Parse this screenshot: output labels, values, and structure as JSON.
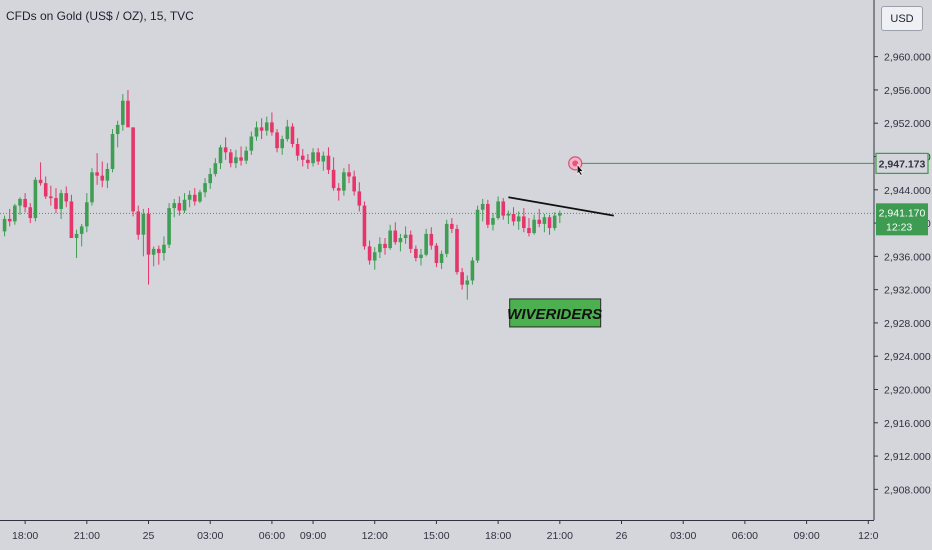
{
  "chart_data": {
    "type": "candlestick",
    "title": "CFDs on Gold (US$ / OZ), 15, TVC",
    "currency": "USD",
    "ylim": [
      2906,
      2964
    ],
    "y_ticks": [
      "2,960.000",
      "2,956.000",
      "2,952.000",
      "2,948.000",
      "2,944.000",
      "2,940.000",
      "2,936.000",
      "2,932.000",
      "2,928.000",
      "2,924.000",
      "2,920.000",
      "2,916.000",
      "2,912.000",
      "2,908.000"
    ],
    "x_ticks": [
      {
        "label": "18:00",
        "i": 4
      },
      {
        "label": "21:00",
        "i": 16
      },
      {
        "label": "25",
        "i": 28
      },
      {
        "label": "03:00",
        "i": 40
      },
      {
        "label": "06:00",
        "i": 52
      },
      {
        "label": "09:00",
        "i": 60
      },
      {
        "label": "12:00",
        "i": 72
      },
      {
        "label": "15:00",
        "i": 84
      },
      {
        "label": "18:00",
        "i": 96
      },
      {
        "label": "21:00",
        "i": 108
      },
      {
        "label": "26",
        "i": 120
      },
      {
        "label": "03:00",
        "i": 132
      },
      {
        "label": "06:00",
        "i": 144
      },
      {
        "label": "09:00",
        "i": 156
      },
      {
        "label": "12:0",
        "i": 168
      }
    ],
    "n_slots": 170,
    "colors": {
      "up": "#3f9e54",
      "down": "#e6356a",
      "alert": "#3a9e3e",
      "price": "#3d9b52",
      "watermark_bg": "#4caf50"
    },
    "candles": [
      [
        2939.0,
        2940.9,
        2938.4,
        2940.5
      ],
      [
        2940.5,
        2941.7,
        2939.6,
        2940.2
      ],
      [
        2940.2,
        2942.3,
        2939.8,
        2942.1
      ],
      [
        2942.1,
        2943.1,
        2941.0,
        2942.9
      ],
      [
        2942.9,
        2943.6,
        2941.3,
        2941.9
      ],
      [
        2941.9,
        2942.4,
        2940.0,
        2940.6
      ],
      [
        2940.6,
        2945.5,
        2940.2,
        2945.2
      ],
      [
        2945.2,
        2947.3,
        2944.5,
        2944.8
      ],
      [
        2944.8,
        2945.6,
        2942.9,
        2943.2
      ],
      [
        2943.2,
        2944.5,
        2942.1,
        2943.0
      ],
      [
        2943.0,
        2944.2,
        2941.2,
        2941.7
      ],
      [
        2941.7,
        2944.0,
        2940.5,
        2943.6
      ],
      [
        2943.6,
        2944.4,
        2941.9,
        2942.6
      ],
      [
        2942.6,
        2943.4,
        2938.3,
        2938.2
      ],
      [
        2938.2,
        2939.2,
        2935.8,
        2938.7
      ],
      [
        2938.7,
        2939.9,
        2937.2,
        2939.6
      ],
      [
        2939.6,
        2943.6,
        2938.9,
        2942.5
      ],
      [
        2942.5,
        2946.6,
        2942.1,
        2946.1
      ],
      [
        2946.1,
        2948.4,
        2944.6,
        2945.7
      ],
      [
        2945.7,
        2947.4,
        2944.3,
        2945.1
      ],
      [
        2945.1,
        2947.2,
        2944.2,
        2946.5
      ],
      [
        2946.5,
        2951.3,
        2946.1,
        2950.7
      ],
      [
        2950.7,
        2952.3,
        2949.1,
        2951.8
      ],
      [
        2951.8,
        2955.5,
        2951.1,
        2954.7
      ],
      [
        2954.7,
        2956.0,
        2951.8,
        2951.5
      ],
      [
        2951.5,
        2951.5,
        2940.8,
        2941.4
      ],
      [
        2941.4,
        2942.1,
        2938.0,
        2938.6
      ],
      [
        2938.6,
        2941.7,
        2936.0,
        2941.1
      ],
      [
        2941.1,
        2941.8,
        2932.6,
        2936.2
      ],
      [
        2936.2,
        2937.2,
        2934.8,
        2936.9
      ],
      [
        2936.9,
        2937.3,
        2935.0,
        2936.4
      ],
      [
        2936.4,
        2938.4,
        2935.5,
        2937.4
      ],
      [
        2937.4,
        2942.4,
        2937.0,
        2941.8
      ],
      [
        2941.8,
        2942.9,
        2940.7,
        2942.4
      ],
      [
        2942.4,
        2943.2,
        2940.9,
        2941.5
      ],
      [
        2941.5,
        2943.6,
        2941.2,
        2942.8
      ],
      [
        2942.8,
        2943.9,
        2941.9,
        2943.4
      ],
      [
        2943.4,
        2944.2,
        2942.1,
        2942.6
      ],
      [
        2942.6,
        2944.0,
        2942.4,
        2943.7
      ],
      [
        2943.7,
        2945.4,
        2943.1,
        2944.8
      ],
      [
        2944.8,
        2946.6,
        2944.1,
        2945.9
      ],
      [
        2945.9,
        2947.8,
        2945.6,
        2947.2
      ],
      [
        2947.2,
        2949.4,
        2946.5,
        2949.1
      ],
      [
        2949.1,
        2950.3,
        2947.6,
        2948.5
      ],
      [
        2948.5,
        2948.9,
        2946.7,
        2947.2
      ],
      [
        2947.2,
        2948.8,
        2946.6,
        2947.9
      ],
      [
        2947.9,
        2949.2,
        2946.9,
        2947.5
      ],
      [
        2947.5,
        2949.2,
        2947.1,
        2948.7
      ],
      [
        2948.7,
        2951.0,
        2948.2,
        2950.4
      ],
      [
        2950.4,
        2952.2,
        2949.9,
        2951.5
      ],
      [
        2951.5,
        2952.6,
        2950.1,
        2951.1
      ],
      [
        2951.1,
        2952.8,
        2950.5,
        2952.1
      ],
      [
        2952.1,
        2953.3,
        2950.5,
        2950.9
      ],
      [
        2950.9,
        2951.3,
        2948.5,
        2949.0
      ],
      [
        2949.0,
        2950.5,
        2948.2,
        2950.1
      ],
      [
        2950.1,
        2952.4,
        2949.8,
        2951.6
      ],
      [
        2951.6,
        2952.0,
        2949.1,
        2949.5
      ],
      [
        2949.5,
        2950.2,
        2947.5,
        2948.1
      ],
      [
        2948.1,
        2948.9,
        2946.8,
        2947.6
      ],
      [
        2947.6,
        2948.3,
        2946.5,
        2947.2
      ],
      [
        2947.2,
        2949.0,
        2946.8,
        2948.5
      ],
      [
        2948.5,
        2949.0,
        2947.0,
        2947.4
      ],
      [
        2947.4,
        2948.6,
        2946.3,
        2948.1
      ],
      [
        2948.1,
        2949.1,
        2945.9,
        2946.4
      ],
      [
        2946.4,
        2947.9,
        2943.9,
        2944.2
      ],
      [
        2944.2,
        2944.8,
        2942.7,
        2943.9
      ],
      [
        2943.9,
        2946.6,
        2943.3,
        2946.1
      ],
      [
        2946.1,
        2947.1,
        2944.8,
        2945.6
      ],
      [
        2945.6,
        2946.3,
        2943.3,
        2943.8
      ],
      [
        2943.8,
        2944.9,
        2941.4,
        2942.1
      ],
      [
        2942.1,
        2942.6,
        2936.8,
        2937.2
      ],
      [
        2937.2,
        2937.9,
        2935.0,
        2935.5
      ],
      [
        2935.5,
        2937.1,
        2934.4,
        2936.5
      ],
      [
        2936.5,
        2938.3,
        2935.8,
        2937.5
      ],
      [
        2937.5,
        2938.2,
        2936.2,
        2937.0
      ],
      [
        2937.0,
        2939.8,
        2936.8,
        2939.1
      ],
      [
        2939.1,
        2940.1,
        2937.4,
        2937.7
      ],
      [
        2937.7,
        2938.7,
        2936.6,
        2938.2
      ],
      [
        2938.2,
        2939.6,
        2937.5,
        2938.6
      ],
      [
        2938.6,
        2939.1,
        2936.4,
        2936.9
      ],
      [
        2936.9,
        2937.3,
        2935.4,
        2935.8
      ],
      [
        2935.8,
        2936.9,
        2934.9,
        2936.2
      ],
      [
        2936.2,
        2939.3,
        2936.0,
        2938.7
      ],
      [
        2938.7,
        2939.5,
        2936.8,
        2937.3
      ],
      [
        2937.3,
        2937.6,
        2934.7,
        2935.2
      ],
      [
        2935.2,
        2936.7,
        2934.5,
        2936.3
      ],
      [
        2936.3,
        2940.4,
        2935.9,
        2939.9
      ],
      [
        2939.9,
        2940.6,
        2938.8,
        2939.3
      ],
      [
        2939.3,
        2939.8,
        2933.8,
        2934.1
      ],
      [
        2934.1,
        2934.6,
        2932.0,
        2932.6
      ],
      [
        2932.6,
        2933.7,
        2930.8,
        2933.1
      ],
      [
        2933.1,
        2935.9,
        2932.6,
        2935.5
      ],
      [
        2935.5,
        2942.1,
        2935.2,
        2941.6
      ],
      [
        2941.6,
        2942.9,
        2940.2,
        2942.3
      ],
      [
        2942.3,
        2942.8,
        2939.4,
        2939.8
      ],
      [
        2939.8,
        2941.2,
        2939.1,
        2940.6
      ],
      [
        2940.6,
        2943.2,
        2940.4,
        2942.6
      ],
      [
        2942.6,
        2943.0,
        2940.4,
        2940.9
      ],
      [
        2940.9,
        2941.5,
        2939.9,
        2941.1
      ],
      [
        2941.1,
        2941.9,
        2939.7,
        2940.2
      ],
      [
        2940.2,
        2941.4,
        2939.2,
        2940.8
      ],
      [
        2940.8,
        2941.8,
        2938.9,
        2939.4
      ],
      [
        2939.4,
        2940.6,
        2938.4,
        2938.8
      ],
      [
        2938.8,
        2941.0,
        2938.6,
        2940.4
      ],
      [
        2940.4,
        2941.7,
        2939.5,
        2939.9
      ],
      [
        2939.9,
        2941.1,
        2938.9,
        2940.7
      ],
      [
        2940.7,
        2941.0,
        2938.6,
        2939.4
      ],
      [
        2939.4,
        2941.3,
        2939.1,
        2940.9
      ],
      [
        2940.9,
        2941.5,
        2940.0,
        2941.17
      ]
    ],
    "current_price": 2941.17,
    "current_price_label": "2,941.170",
    "countdown": "12:23",
    "alert_price": 2947.173,
    "alert_price_label": "2,947.173",
    "alert_start_index": 111,
    "trendline": {
      "start": {
        "i": 98,
        "y": 2943.1
      },
      "end": {
        "i": 116,
        "y": 2940.9
      }
    },
    "watermark_text": "WIVERIDERS",
    "watermark_index": 107,
    "watermark_price": 2929.2
  }
}
